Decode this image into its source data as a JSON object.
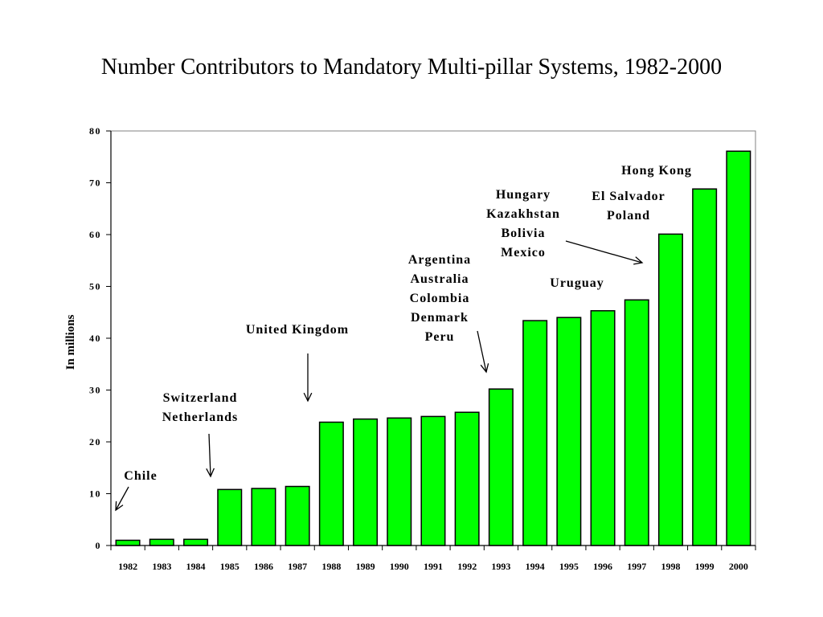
{
  "chart_data": {
    "type": "bar",
    "title": "Number Contributors to Mandatory Multi-pillar Systems, 1982-2000",
    "xlabel": "",
    "ylabel": "In millions",
    "ylim": [
      0,
      80
    ],
    "yticks": [
      0,
      10,
      20,
      30,
      40,
      50,
      60,
      70,
      80
    ],
    "grid": false,
    "legend": "none",
    "bar_color": "#00ff00",
    "categories": [
      "1982",
      "1983",
      "1984",
      "1985",
      "1986",
      "1987",
      "1988",
      "1989",
      "1990",
      "1991",
      "1992",
      "1993",
      "1994",
      "1995",
      "1996",
      "1997",
      "1998",
      "1999",
      "2000"
    ],
    "values": [
      1.0,
      1.2,
      1.2,
      10.8,
      11.0,
      11.4,
      23.8,
      24.4,
      24.6,
      24.9,
      25.7,
      30.2,
      43.4,
      44.0,
      45.3,
      47.4,
      60.1,
      68.8,
      76.1
    ],
    "annotations": [
      {
        "lines": [
          "Chile"
        ]
      },
      {
        "lines": [
          "Switzerland",
          "Netherlands"
        ]
      },
      {
        "lines": [
          "United Kingdom"
        ]
      },
      {
        "lines": [
          "Argentina",
          "Australia",
          "Colombia",
          "Denmark",
          "Peru"
        ]
      },
      {
        "lines": [
          "Hungary",
          "Kazakhstan",
          "Bolivia",
          "Mexico"
        ]
      },
      {
        "lines": [
          "Uruguay"
        ]
      },
      {
        "lines": [
          "El Salvador",
          "Poland"
        ]
      },
      {
        "lines": [
          "Hong Kong"
        ]
      }
    ]
  }
}
